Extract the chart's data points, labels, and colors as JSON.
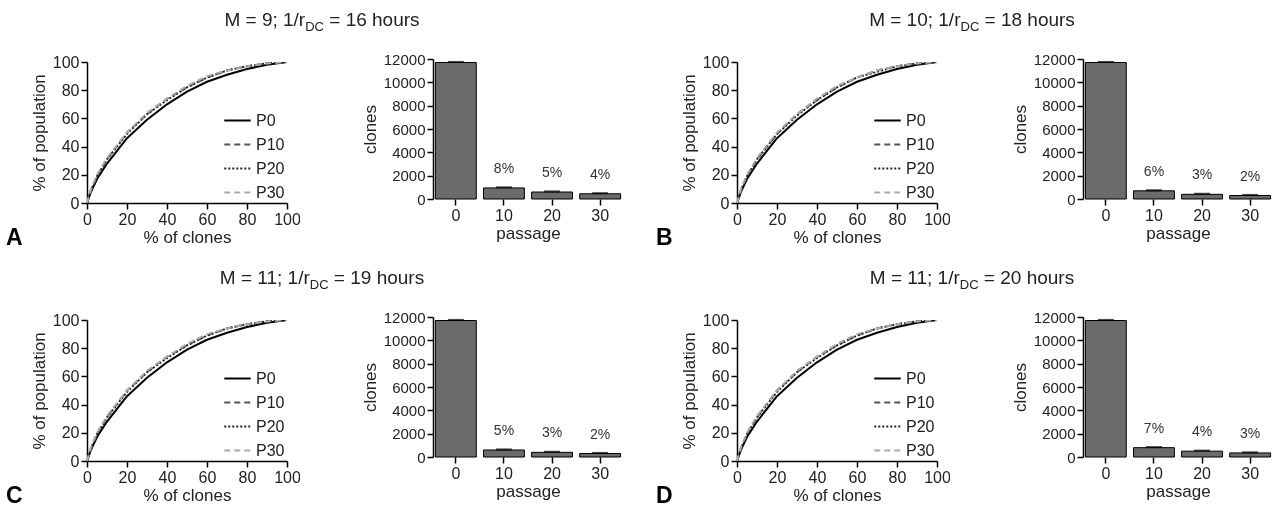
{
  "chart_data": [
    {
      "type": "line",
      "title": "M = 9; 1/r$_{DC}$ = 16 hours",
      "annotations": [
        "A"
      ],
      "xlabel": "% of clones",
      "ylabel": "% of population",
      "xlim": [
        0,
        100
      ],
      "xticks": [
        0,
        20,
        40,
        60,
        80,
        100
      ],
      "ylim": [
        0,
        100
      ],
      "yticks": [
        0,
        20,
        40,
        60,
        80,
        100
      ],
      "legend": "bottom right",
      "x": [
        0,
        2,
        5,
        10,
        20,
        30,
        40,
        50,
        60,
        70,
        80,
        90,
        100
      ],
      "series": [
        {
          "name": "P0",
          "color": "#000000",
          "line_style": "solid",
          "values": [
            0,
            8,
            17,
            28,
            46,
            59,
            70,
            79,
            86,
            91,
            95,
            98,
            100
          ]
        },
        {
          "name": "P10",
          "color": "#555555",
          "line_style": "dashed",
          "values": [
            0,
            9,
            19,
            31,
            50,
            63,
            74,
            82,
            89,
            94,
            97,
            99,
            100
          ]
        },
        {
          "name": "P20",
          "color": "#222222",
          "line_style": "dotted",
          "values": [
            0,
            9,
            19,
            31,
            49,
            63,
            73,
            82,
            89,
            94,
            97,
            99,
            100
          ]
        },
        {
          "name": "P30",
          "color": "#aaaaaa",
          "line_style": "dashed",
          "values": [
            0,
            10,
            20,
            32,
            50,
            64,
            74,
            83,
            90,
            94,
            97,
            99,
            100
          ]
        }
      ]
    },
    {
      "type": "bar",
      "xlabel": "passage",
      "ylabel": "clones",
      "categories": [
        "0",
        "10",
        "20",
        "30"
      ],
      "values": [
        11700,
        950,
        600,
        450
      ],
      "errors": [
        50,
        50,
        50,
        50
      ],
      "annotations": [
        {
          "text": "8%",
          "x": "10",
          "y": 950
        },
        {
          "text": "5%",
          "x": "20",
          "y": 600
        },
        {
          "text": "4%",
          "x": "30",
          "y": 450
        }
      ],
      "color": "#6b6b6b",
      "ylim": [
        0,
        12000
      ],
      "yticks": [
        0,
        2000,
        4000,
        6000,
        8000,
        10000,
        12000
      ]
    },
    {
      "type": "line",
      "title": "M = 10; 1/r$_{DC}$ = 18 hours",
      "annotations": [
        "B"
      ],
      "xlabel": "% of clones",
      "ylabel": "% of population",
      "xlim": [
        0,
        100
      ],
      "xticks": [
        0,
        20,
        40,
        60,
        80,
        100
      ],
      "ylim": [
        0,
        100
      ],
      "yticks": [
        0,
        20,
        40,
        60,
        80,
        100
      ],
      "legend": "bottom right",
      "x": [
        0,
        2,
        5,
        10,
        20,
        30,
        40,
        50,
        60,
        70,
        80,
        90,
        100
      ],
      "series": [
        {
          "name": "P0",
          "color": "#000000",
          "line_style": "solid",
          "values": [
            0,
            8,
            17,
            28,
            46,
            59,
            70,
            79,
            86,
            91,
            95,
            98,
            100
          ]
        },
        {
          "name": "P10",
          "color": "#555555",
          "line_style": "dashed",
          "values": [
            0,
            9,
            19,
            31,
            49,
            63,
            73,
            82,
            89,
            94,
            97,
            99,
            100
          ]
        },
        {
          "name": "P20",
          "color": "#222222",
          "line_style": "dotted",
          "values": [
            0,
            9,
            19,
            31,
            49,
            62,
            73,
            82,
            89,
            93,
            97,
            99,
            100
          ]
        },
        {
          "name": "P30",
          "color": "#aaaaaa",
          "line_style": "dashed",
          "values": [
            0,
            10,
            20,
            32,
            50,
            63,
            74,
            83,
            89,
            94,
            97,
            99,
            100
          ]
        }
      ]
    },
    {
      "type": "bar",
      "xlabel": "passage",
      "ylabel": "clones",
      "categories": [
        "0",
        "10",
        "20",
        "30"
      ],
      "values": [
        11700,
        700,
        400,
        300
      ],
      "errors": [
        50,
        50,
        50,
        50
      ],
      "annotations": [
        {
          "text": "6%",
          "x": "10",
          "y": 700
        },
        {
          "text": "3%",
          "x": "20",
          "y": 400
        },
        {
          "text": "2%",
          "x": "30",
          "y": 300
        }
      ],
      "color": "#6b6b6b",
      "ylim": [
        0,
        12000
      ],
      "yticks": [
        0,
        2000,
        4000,
        6000,
        8000,
        10000,
        12000
      ]
    },
    {
      "type": "line",
      "title": "M = 11; 1/r$_{DC}$ = 19 hours",
      "annotations": [
        "C"
      ],
      "xlabel": "% of clones",
      "ylabel": "% of population",
      "xlim": [
        0,
        100
      ],
      "xticks": [
        0,
        20,
        40,
        60,
        80,
        100
      ],
      "ylim": [
        0,
        100
      ],
      "yticks": [
        0,
        20,
        40,
        60,
        80,
        100
      ],
      "legend": "bottom right",
      "x": [
        0,
        2,
        5,
        10,
        20,
        30,
        40,
        50,
        60,
        70,
        80,
        90,
        100
      ],
      "series": [
        {
          "name": "P0",
          "color": "#000000",
          "line_style": "solid",
          "values": [
            0,
            8,
            17,
            28,
            46,
            59,
            70,
            79,
            86,
            91,
            95,
            98,
            100
          ]
        },
        {
          "name": "P10",
          "color": "#555555",
          "line_style": "dashed",
          "values": [
            0,
            9,
            19,
            31,
            50,
            63,
            74,
            82,
            89,
            94,
            97,
            99,
            100
          ]
        },
        {
          "name": "P20",
          "color": "#222222",
          "line_style": "dotted",
          "values": [
            0,
            9,
            19,
            31,
            49,
            63,
            73,
            82,
            89,
            94,
            97,
            99,
            100
          ]
        },
        {
          "name": "P30",
          "color": "#aaaaaa",
          "line_style": "dashed",
          "values": [
            0,
            10,
            20,
            32,
            50,
            64,
            74,
            83,
            90,
            94,
            97,
            99,
            100
          ]
        }
      ]
    },
    {
      "type": "bar",
      "xlabel": "passage",
      "ylabel": "clones",
      "categories": [
        "0",
        "10",
        "20",
        "30"
      ],
      "values": [
        11700,
        600,
        400,
        300
      ],
      "errors": [
        50,
        50,
        50,
        50
      ],
      "annotations": [
        {
          "text": "5%",
          "x": "10",
          "y": 600
        },
        {
          "text": "3%",
          "x": "20",
          "y": 400
        },
        {
          "text": "2%",
          "x": "30",
          "y": 300
        }
      ],
      "color": "#6b6b6b",
      "ylim": [
        0,
        12000
      ],
      "yticks": [
        0,
        2000,
        4000,
        6000,
        8000,
        10000,
        12000
      ]
    },
    {
      "type": "line",
      "title": "M = 11; 1/r$_{DC}$ = 20 hours",
      "annotations": [
        "D"
      ],
      "xlabel": "% of clones",
      "ylabel": "% of population",
      "xlim": [
        0,
        100
      ],
      "xticks": [
        0,
        20,
        40,
        60,
        80,
        100
      ],
      "ylim": [
        0,
        100
      ],
      "yticks": [
        0,
        20,
        40,
        60,
        80,
        100
      ],
      "legend": "bottom right",
      "x": [
        0,
        2,
        5,
        10,
        20,
        30,
        40,
        50,
        60,
        70,
        80,
        90,
        100
      ],
      "series": [
        {
          "name": "P0",
          "color": "#000000",
          "line_style": "solid",
          "values": [
            0,
            8,
            17,
            28,
            46,
            59,
            70,
            79,
            86,
            91,
            95,
            98,
            100
          ]
        },
        {
          "name": "P10",
          "color": "#555555",
          "line_style": "dashed",
          "values": [
            0,
            9,
            19,
            31,
            50,
            63,
            74,
            82,
            89,
            94,
            97,
            99,
            100
          ]
        },
        {
          "name": "P20",
          "color": "#222222",
          "line_style": "dotted",
          "values": [
            0,
            9,
            19,
            31,
            49,
            63,
            73,
            82,
            89,
            94,
            97,
            99,
            100
          ]
        },
        {
          "name": "P30",
          "color": "#aaaaaa",
          "line_style": "dashed",
          "values": [
            0,
            10,
            20,
            32,
            50,
            64,
            74,
            83,
            90,
            94,
            97,
            99,
            100
          ]
        }
      ]
    },
    {
      "type": "bar",
      "xlabel": "passage",
      "ylabel": "clones",
      "categories": [
        "0",
        "10",
        "20",
        "30"
      ],
      "values": [
        11700,
        800,
        500,
        350
      ],
      "errors": [
        50,
        50,
        50,
        50
      ],
      "annotations": [
        {
          "text": "7%",
          "x": "10",
          "y": 800
        },
        {
          "text": "4%",
          "x": "20",
          "y": 500
        },
        {
          "text": "3%",
          "x": "30",
          "y": 350
        }
      ],
      "color": "#6b6b6b",
      "ylim": [
        0,
        12000
      ],
      "yticks": [
        0,
        2000,
        4000,
        6000,
        8000,
        10000,
        12000
      ]
    }
  ]
}
